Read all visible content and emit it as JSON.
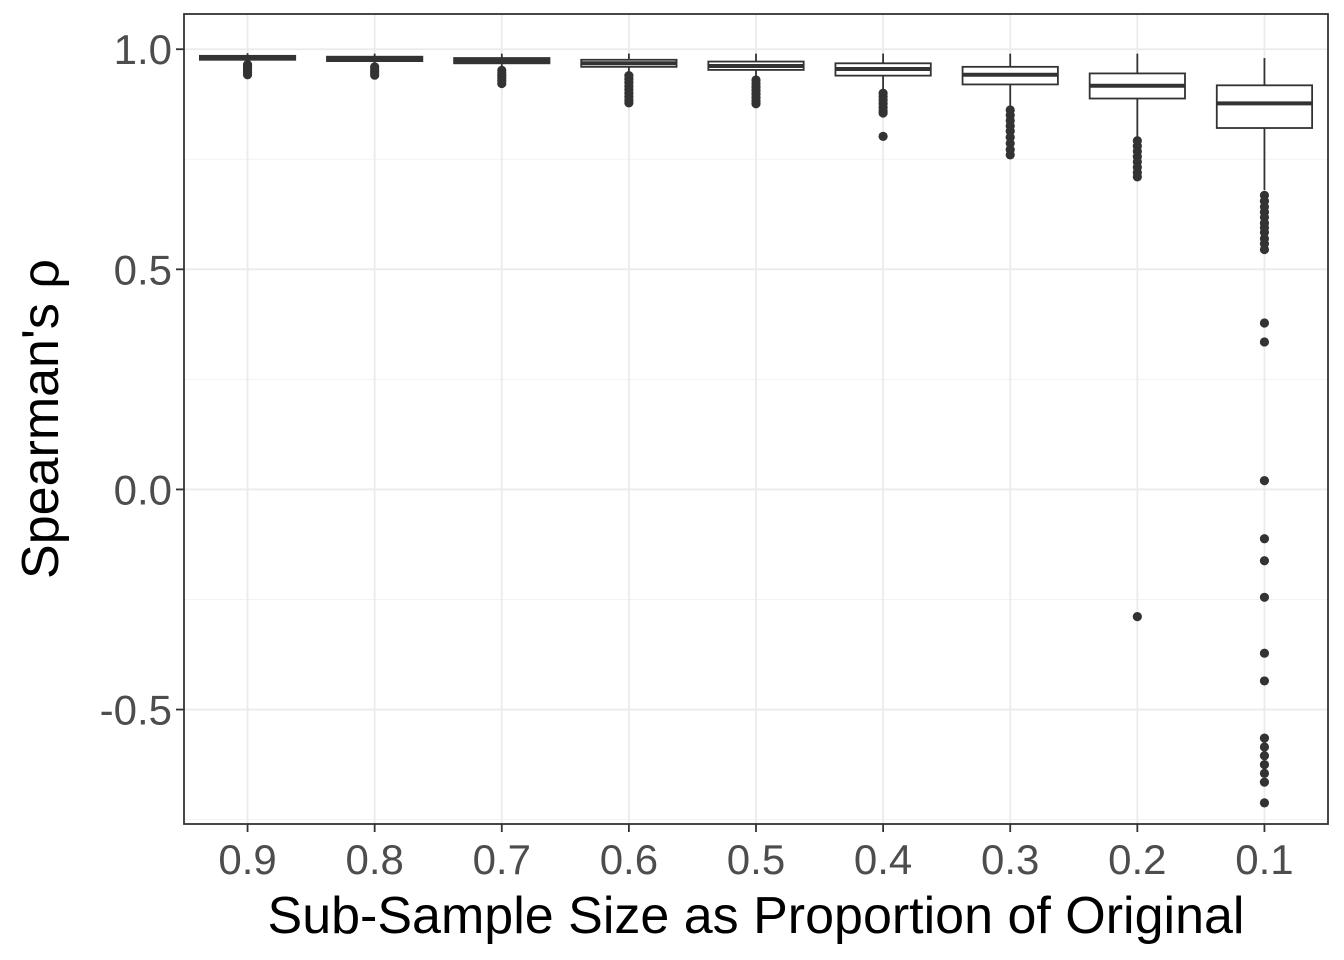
{
  "chart_data": {
    "type": "boxplot",
    "xlabel": "Sub-Sample Size as Proportion of Original",
    "ylabel": "Spearman's ρ",
    "ylim": [
      -0.76,
      1.08
    ],
    "yticks": [
      1.0,
      0.5,
      0.0,
      -0.5
    ],
    "ytick_labels": [
      "1.0",
      "0.5",
      "0.0",
      "-0.5"
    ],
    "categories": [
      "0.9",
      "0.8",
      "0.7",
      "0.6",
      "0.5",
      "0.4",
      "0.3",
      "0.2",
      "0.1"
    ],
    "grid": true,
    "legend": "none",
    "colors": {
      "box_stroke": "#333333",
      "box_fill": "#ffffff",
      "outlier": "#333333",
      "panel_border": "#333333"
    },
    "boxes": [
      {
        "category": "0.9",
        "whisker_low": 0.968,
        "q1": 0.976,
        "median": 0.98,
        "q3": 0.985,
        "whisker_high": 0.991,
        "outliers": [
          0.965,
          0.962,
          0.958,
          0.953,
          0.948,
          0.942
        ]
      },
      {
        "category": "0.8",
        "whisker_low": 0.962,
        "q1": 0.973,
        "median": 0.978,
        "q3": 0.983,
        "whisker_high": 0.99,
        "outliers": [
          0.96,
          0.955,
          0.95,
          0.946,
          0.941
        ]
      },
      {
        "category": "0.7",
        "whisker_low": 0.955,
        "q1": 0.968,
        "median": 0.974,
        "q3": 0.98,
        "whisker_high": 0.99,
        "outliers": [
          0.952,
          0.946,
          0.94,
          0.934,
          0.928,
          0.922
        ]
      },
      {
        "category": "0.6",
        "whisker_low": 0.943,
        "q1": 0.96,
        "median": 0.968,
        "q3": 0.976,
        "whisker_high": 0.99,
        "outliers": [
          0.94,
          0.932,
          0.924,
          0.916,
          0.908,
          0.9,
          0.892,
          0.884,
          0.878
        ]
      },
      {
        "category": "0.5",
        "whisker_low": 0.935,
        "q1": 0.953,
        "median": 0.962,
        "q3": 0.972,
        "whisker_high": 0.99,
        "outliers": [
          0.93,
          0.922,
          0.914,
          0.906,
          0.898,
          0.89,
          0.882,
          0.876
        ]
      },
      {
        "category": "0.4",
        "whisker_low": 0.905,
        "q1": 0.94,
        "median": 0.955,
        "q3": 0.968,
        "whisker_high": 0.99,
        "outliers": [
          0.9,
          0.892,
          0.884,
          0.876,
          0.868,
          0.86,
          0.855,
          0.802
        ]
      },
      {
        "category": "0.3",
        "whisker_low": 0.87,
        "q1": 0.92,
        "median": 0.942,
        "q3": 0.96,
        "whisker_high": 0.99,
        "outliers": [
          0.862,
          0.85,
          0.838,
          0.826,
          0.814,
          0.8,
          0.786,
          0.772,
          0.76
        ]
      },
      {
        "category": "0.2",
        "whisker_low": 0.8,
        "q1": 0.888,
        "median": 0.917,
        "q3": 0.945,
        "whisker_high": 0.99,
        "outliers": [
          0.792,
          0.78,
          0.768,
          0.756,
          0.744,
          0.732,
          0.72,
          0.71,
          -0.289
        ]
      },
      {
        "category": "0.1",
        "whisker_low": 0.68,
        "q1": 0.821,
        "median": 0.877,
        "q3": 0.918,
        "whisker_high": 0.98,
        "outliers": [
          0.668,
          0.655,
          0.642,
          0.63,
          0.618,
          0.605,
          0.595,
          0.584,
          0.57,
          0.558,
          0.545,
          0.378,
          0.335,
          0.02,
          -0.112,
          -0.162,
          -0.245,
          -0.372,
          -0.435,
          -0.565,
          -0.585,
          -0.605,
          -0.625,
          -0.645,
          -0.665,
          -0.712
        ]
      }
    ]
  }
}
